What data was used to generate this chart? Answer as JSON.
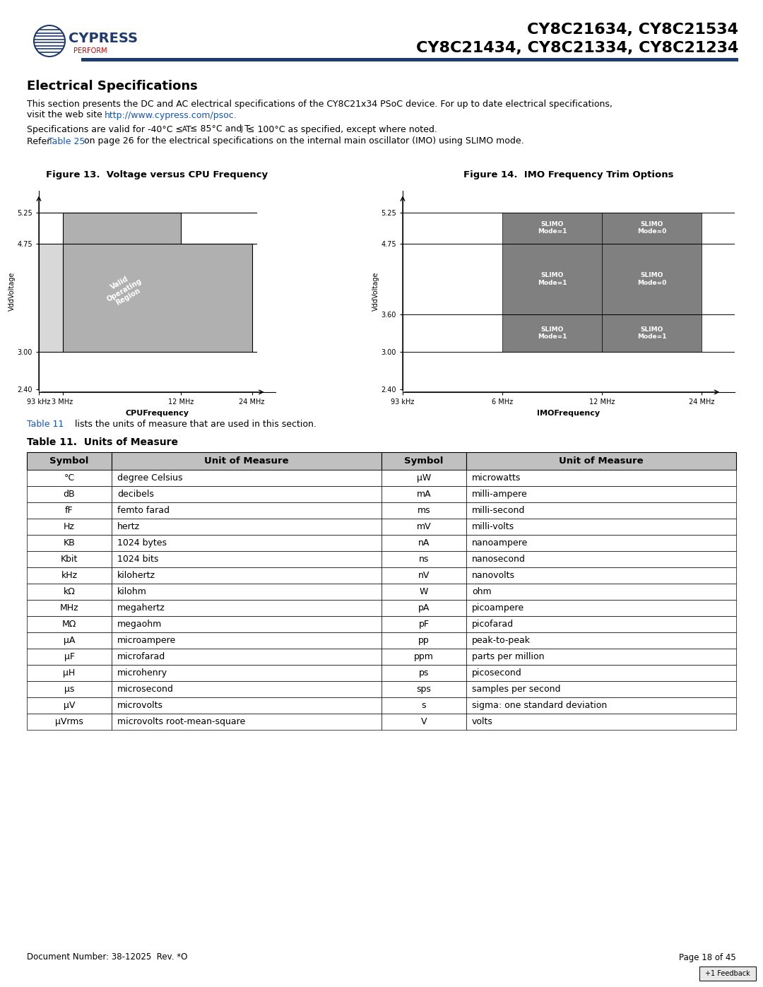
{
  "header_title_line1": "CY8C21634, CY8C21534",
  "header_title_line2": "CY8C21434, CY8C21334, CY8C21234",
  "section_title": "Electrical Specifications",
  "body_text_line1": "This section presents the DC and AC electrical specifications of the CY8C21x34 PSoC device. For up to date electrical specifications,",
  "body_text_line2": "visit the web site http://www.cypress.com/psoc.",
  "body_text_line3": "Specifications are valid for -40°C ≤ Tₐ ≤ 85°C and Tⱼ ≤ 100°C as specified, except where noted.",
  "body_text_line4": "Refer Table 25 on page 26 for the electrical specifications on the internal main oscillator (IMO) using SLIMO mode.",
  "fig13_title": "Figure 13.  Voltage versus CPU Frequency",
  "fig14_title": "Figure 14.  IMO Frequency Trim Options",
  "table_title": "Table 11.  Units of Measure",
  "table_ref_text": "Table 11 lists the units of measure that are used in this section.",
  "footer_left": "Document Number: 38-12025  Rev. *O",
  "footer_right": "Page 18 of 45",
  "table_headers": [
    "Symbol",
    "Unit of Measure",
    "Symbol",
    "Unit of Measure"
  ],
  "table_rows_left": [
    [
      "°C",
      "degree Celsius"
    ],
    [
      "dB",
      "decibels"
    ],
    [
      "fF",
      "femto farad"
    ],
    [
      "Hz",
      "hertz"
    ],
    [
      "KB",
      "1024 bytes"
    ],
    [
      "Kbit",
      "1024 bits"
    ],
    [
      "kHz",
      "kilohertz"
    ],
    [
      "kΩ",
      "kilohm"
    ],
    [
      "MHz",
      "megahertz"
    ],
    [
      "MΩ",
      "megaohm"
    ],
    [
      "μA",
      "microampere"
    ],
    [
      "μF",
      "microfarad"
    ],
    [
      "μH",
      "microhenry"
    ],
    [
      "μs",
      "microsecond"
    ],
    [
      "μV",
      "microvolts"
    ],
    [
      "μVrms",
      "microvolts root-mean-square"
    ]
  ],
  "table_rows_right": [
    [
      "μW",
      "microwatts"
    ],
    [
      "mA",
      "milli-ampere"
    ],
    [
      "ms",
      "milli-second"
    ],
    [
      "mV",
      "milli-volts"
    ],
    [
      "nA",
      "nanoampere"
    ],
    [
      "ns",
      "nanosecond"
    ],
    [
      "nV",
      "nanovolts"
    ],
    [
      "W",
      "ohm"
    ],
    [
      "pA",
      "picoampere"
    ],
    [
      "pF",
      "picofarad"
    ],
    [
      "pp",
      "peak-to-peak"
    ],
    [
      "ppm",
      "parts per million"
    ],
    [
      "ps",
      "picosecond"
    ],
    [
      "sps",
      "samples per second"
    ],
    [
      "s",
      "sigma: one standard deviation"
    ],
    [
      "V",
      "volts"
    ]
  ],
  "header_bg": "#1e3a6e",
  "header_line_color": "#1e3a6e",
  "table_header_bg": "#c0c0c0",
  "table_border_color": "#000000",
  "link_color": "#1155cc",
  "table_ref_link": "#1155cc",
  "gray_region": "#a0a0a0",
  "white_bg": "#ffffff",
  "dark_gray_region": "#808080"
}
